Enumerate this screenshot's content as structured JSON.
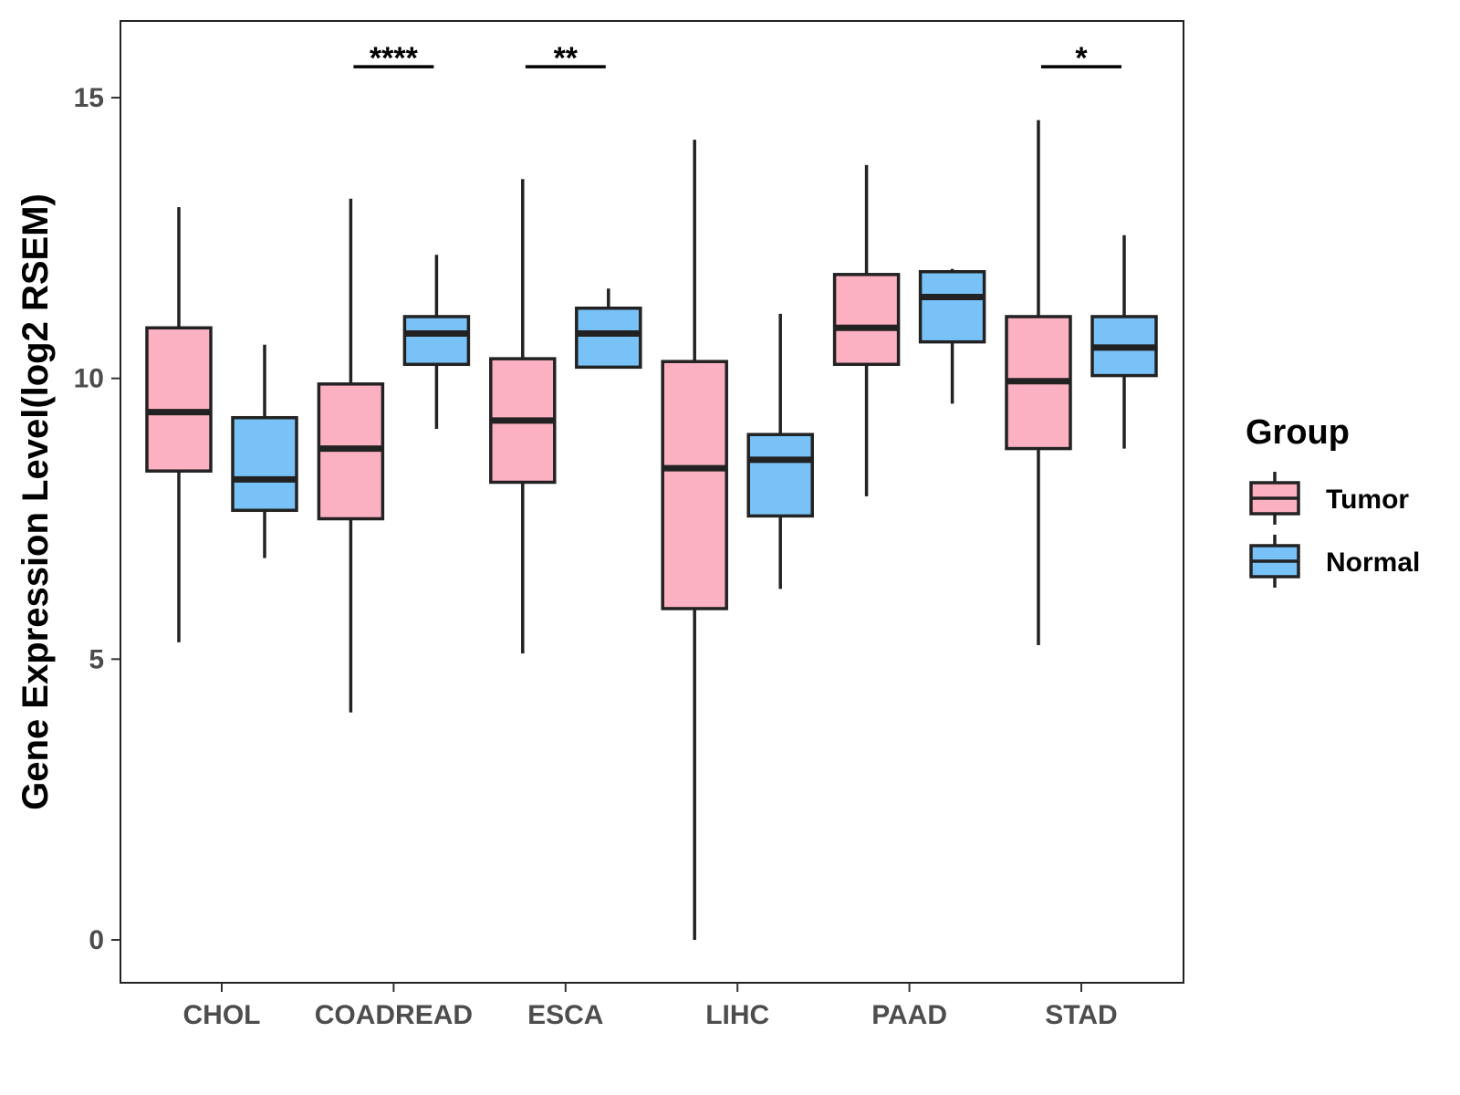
{
  "chart_data": {
    "type": "boxplot",
    "ylabel": "Gene Expression Level(log2 RSEM)",
    "xlabel": "",
    "ylim": [
      -0.75,
      16.4
    ],
    "yticks": [
      0,
      5,
      10,
      15
    ],
    "ytick_labels": [
      "0",
      "5",
      "10",
      "15"
    ],
    "categories": [
      "CHOL",
      "COADREAD",
      "ESCA",
      "LIHC",
      "PAAD",
      "STAD"
    ],
    "legend": {
      "title": "Group",
      "position": "right"
    },
    "series": [
      {
        "name": "Tumor",
        "color": "#fbb1c1",
        "boxes": [
          {
            "min": 5.3,
            "q1": 8.35,
            "median": 9.4,
            "q3": 10.9,
            "max": 13.05
          },
          {
            "min": 4.05,
            "q1": 7.5,
            "median": 8.75,
            "q3": 9.9,
            "max": 13.2
          },
          {
            "min": 5.1,
            "q1": 8.15,
            "median": 9.25,
            "q3": 10.35,
            "max": 13.55
          },
          {
            "min": 0.0,
            "q1": 5.9,
            "median": 8.4,
            "q3": 10.3,
            "max": 14.25
          },
          {
            "min": 7.9,
            "q1": 10.25,
            "median": 10.9,
            "q3": 11.85,
            "max": 13.8
          },
          {
            "min": 5.25,
            "q1": 8.75,
            "median": 9.95,
            "q3": 11.1,
            "max": 14.6
          }
        ]
      },
      {
        "name": "Normal",
        "color": "#78c2f8",
        "boxes": [
          {
            "min": 6.8,
            "q1": 7.65,
            "median": 8.2,
            "q3": 9.3,
            "max": 10.6
          },
          {
            "min": 9.1,
            "q1": 10.25,
            "median": 10.8,
            "q3": 11.1,
            "max": 12.2
          },
          {
            "min": 10.2,
            "q1": 10.2,
            "median": 10.8,
            "q3": 11.25,
            "max": 11.6
          },
          {
            "min": 6.25,
            "q1": 7.55,
            "median": 8.55,
            "q3": 9.0,
            "max": 11.15
          },
          {
            "min": 9.55,
            "q1": 10.65,
            "median": 11.45,
            "q3": 11.9,
            "max": 11.95
          },
          {
            "min": 8.75,
            "q1": 10.05,
            "median": 10.55,
            "q3": 11.1,
            "max": 12.55
          }
        ]
      }
    ],
    "significance": [
      {
        "category": "COADREAD",
        "label": "****",
        "y": 15.55
      },
      {
        "category": "ESCA",
        "label": "**",
        "y": 15.55
      },
      {
        "category": "STAD",
        "label": "*",
        "y": 15.55
      }
    ]
  }
}
